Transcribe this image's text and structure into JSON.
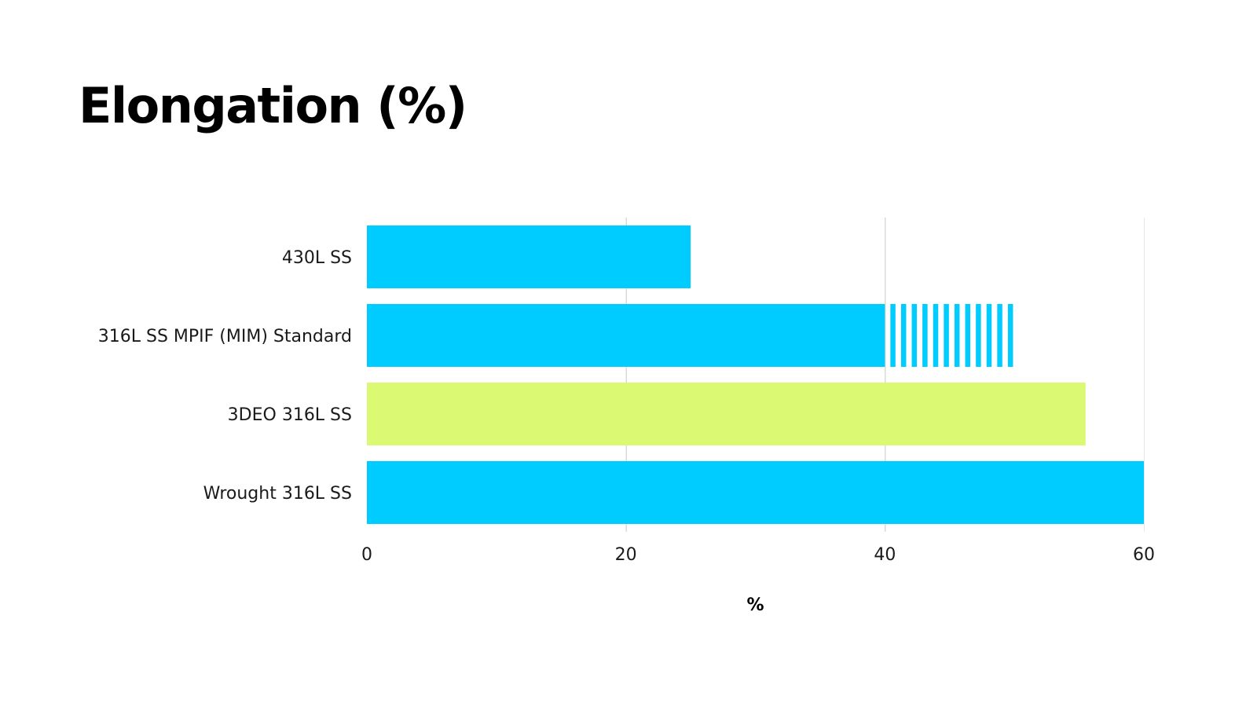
{
  "slide": {
    "title": "Elongation (%)"
  },
  "chart_data": {
    "type": "bar",
    "orientation": "horizontal",
    "categories": [
      "430L SS",
      "316L SS MPIF (MIM) Standard",
      "3DEO 316L SS",
      "Wrought 316L SS"
    ],
    "values": [
      25,
      40,
      55.5,
      60
    ],
    "range_extension": [
      null,
      50,
      null,
      null
    ],
    "bar_colors": [
      "#00ccff",
      "#00ccff",
      "#dbf972",
      "#00ccff"
    ],
    "xlim": [
      0,
      60
    ],
    "x_ticks": [
      "0",
      "20",
      "40",
      "60"
    ],
    "x_tick_values": [
      0,
      20,
      40,
      60
    ],
    "xlabel": "%",
    "ylabel": "",
    "grid": true,
    "legend": "none"
  }
}
